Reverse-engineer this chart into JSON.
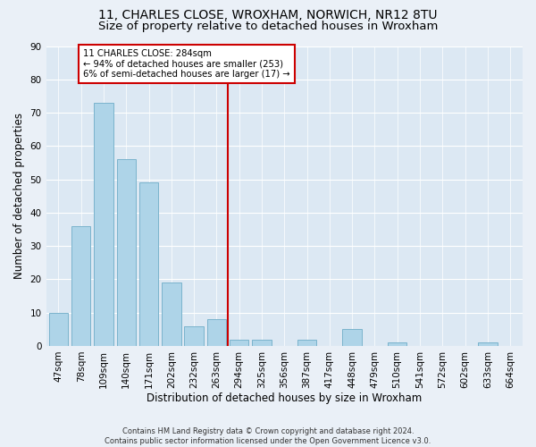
{
  "title1": "11, CHARLES CLOSE, WROXHAM, NORWICH, NR12 8TU",
  "title2": "Size of property relative to detached houses in Wroxham",
  "xlabel": "Distribution of detached houses by size in Wroxham",
  "ylabel": "Number of detached properties",
  "categories": [
    "47sqm",
    "78sqm",
    "109sqm",
    "140sqm",
    "171sqm",
    "202sqm",
    "232sqm",
    "263sqm",
    "294sqm",
    "325sqm",
    "356sqm",
    "387sqm",
    "417sqm",
    "448sqm",
    "479sqm",
    "510sqm",
    "541sqm",
    "572sqm",
    "602sqm",
    "633sqm",
    "664sqm"
  ],
  "values": [
    10,
    36,
    73,
    56,
    49,
    19,
    6,
    8,
    2,
    2,
    0,
    2,
    0,
    5,
    0,
    1,
    0,
    0,
    0,
    1,
    0
  ],
  "bar_color": "#aed4e8",
  "bar_edge_color": "#7ab3cc",
  "vline_pos": 7.5,
  "vline_color": "#cc0000",
  "annotation_line1": "11 CHARLES CLOSE: 284sqm",
  "annotation_line2": "← 94% of detached houses are smaller (253)",
  "annotation_line3": "6% of semi-detached houses are larger (17) →",
  "annotation_box_color": "#cc0000",
  "ylim": [
    0,
    90
  ],
  "yticks": [
    0,
    10,
    20,
    30,
    40,
    50,
    60,
    70,
    80,
    90
  ],
  "background_color": "#eaf0f7",
  "plot_bg_color": "#dce8f3",
  "footer": "Contains HM Land Registry data © Crown copyright and database right 2024.\nContains public sector information licensed under the Open Government Licence v3.0.",
  "title1_fontsize": 10,
  "title2_fontsize": 9.5,
  "xlabel_fontsize": 8.5,
  "ylabel_fontsize": 8.5,
  "tick_fontsize": 7.5,
  "footer_fontsize": 6.0
}
